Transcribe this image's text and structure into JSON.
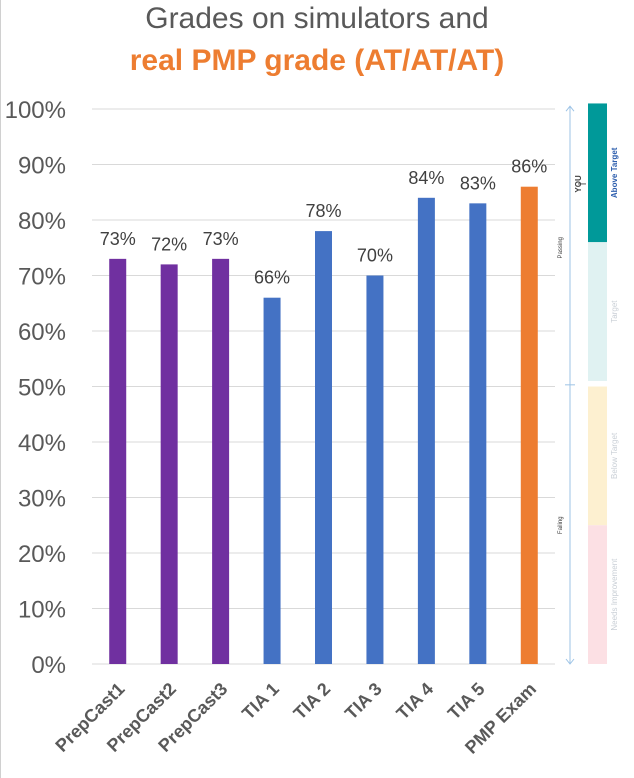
{
  "chart_data": {
    "type": "bar",
    "title_line1": "Grades on simulators and",
    "title_line2": "real PMP grade (AT/AT/AT)",
    "categories": [
      "PrepCast1",
      "PrepCast2",
      "PrepCast3",
      "TIA 1",
      "TIA 2",
      "TIA 3",
      "TIA 4",
      "TIA 5",
      "PMP Exam"
    ],
    "values": [
      73,
      72,
      73,
      66,
      78,
      70,
      84,
      83,
      86
    ],
    "data_labels": [
      "73%",
      "72%",
      "73%",
      "66%",
      "78%",
      "70%",
      "84%",
      "83%",
      "86%"
    ],
    "bar_colors": [
      "#7030A0",
      "#7030A0",
      "#7030A0",
      "#4472C4",
      "#4472C4",
      "#4472C4",
      "#4472C4",
      "#4472C4",
      "#ED7D31"
    ],
    "ylim": [
      0,
      100
    ],
    "yticks": [
      0,
      10,
      20,
      30,
      40,
      50,
      60,
      70,
      80,
      90,
      100
    ],
    "ytick_labels": [
      "0%",
      "10%",
      "20%",
      "30%",
      "40%",
      "50%",
      "60%",
      "70%",
      "80%",
      "90%",
      "100%"
    ],
    "grid": true,
    "score_bands": [
      {
        "label": "Above Target",
        "from": 76,
        "to": 101,
        "color": "#009999",
        "text_color": "#2E5FAE"
      },
      {
        "label": "Target",
        "from": 51,
        "to": 76,
        "color": "#E0F2F2",
        "text_color": "#C9CFD6"
      },
      {
        "label": "Below Target",
        "from": 25,
        "to": 50,
        "color": "#FDF0D0",
        "text_color": "#C9CFD6"
      },
      {
        "label": "Needs Improvement",
        "from": 0,
        "to": 25,
        "color": "#FCE0E4",
        "text_color": "#C9CFD6"
      }
    ],
    "side_labels": {
      "you": "YOU",
      "passing": "Passing",
      "failing": "Failing"
    }
  }
}
